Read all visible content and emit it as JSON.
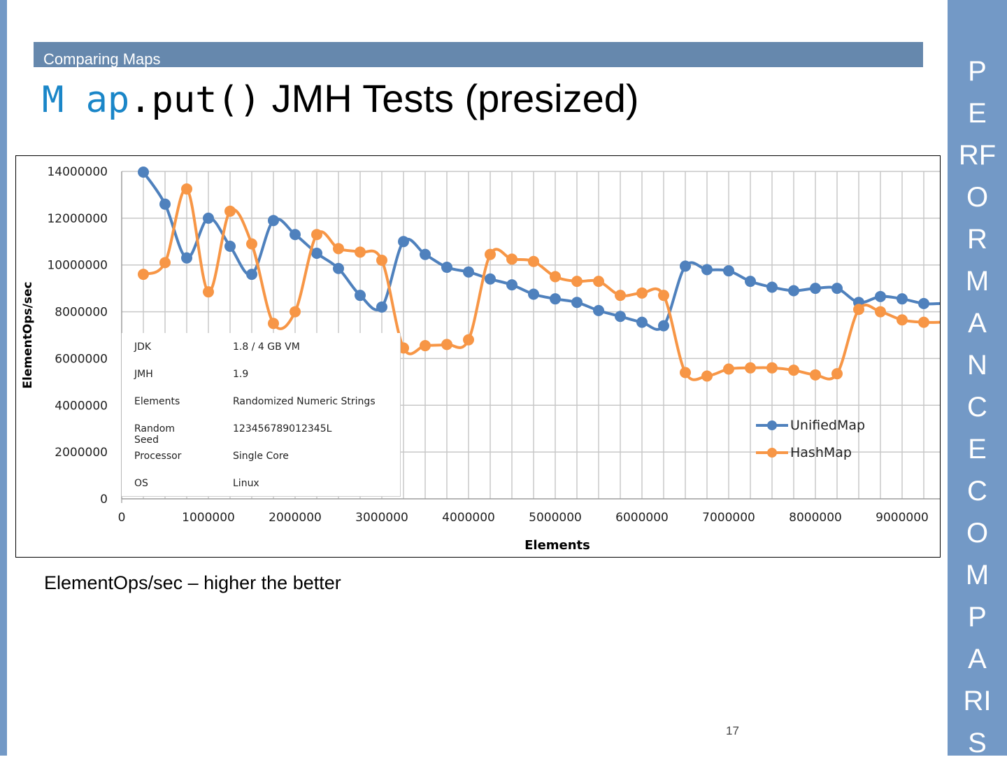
{
  "header": {
    "section": "Comparing Maps",
    "title_code_blue": "M ap",
    "title_code_black": ".put()",
    "title_text": " JMH Tests (presized)"
  },
  "sidebar": {
    "letters": [
      "P",
      "E",
      "RF",
      "O",
      "R",
      "M",
      "A",
      "N",
      "C",
      "E",
      "C",
      "O",
      "M",
      "P",
      "A",
      "RI",
      "S"
    ]
  },
  "caption": "ElementOps/sec – higher the better",
  "page_number": "17",
  "info_table": [
    [
      "JDK",
      "1.8 / 4 GB VM"
    ],
    [
      "JMH",
      "1.9"
    ],
    [
      "Elements",
      "Randomized Numeric Strings"
    ],
    [
      "Random Seed",
      "123456789012345L"
    ],
    [
      "Processor",
      "Single Core"
    ],
    [
      "OS",
      "Linux"
    ]
  ],
  "chart_data": {
    "type": "line",
    "xlabel": "Elements",
    "ylabel": "ElementOps/sec",
    "xlim": [
      0,
      9400000
    ],
    "ylim": [
      0,
      14000000
    ],
    "xticks": [
      "0",
      "1000000",
      "2000000",
      "3000000",
      "4000000",
      "5000000",
      "6000000",
      "7000000",
      "8000000",
      "9000000"
    ],
    "yticks": [
      "0",
      "2000000",
      "4000000",
      "6000000",
      "8000000",
      "10000000",
      "12000000",
      "14000000"
    ],
    "legend": "right",
    "x": [
      250000,
      500000,
      750000,
      1000000,
      1250000,
      1500000,
      1750000,
      2000000,
      2250000,
      2500000,
      2750000,
      3000000,
      3250000,
      3500000,
      3750000,
      4000000,
      4250000,
      4500000,
      4750000,
      5000000,
      5250000,
      5500000,
      5750000,
      6000000,
      6250000,
      6500000,
      6750000,
      7000000,
      7250000,
      7500000,
      7750000,
      8000000,
      8250000,
      8500000,
      8750000,
      9000000,
      9250000
    ],
    "series": [
      {
        "name": "UnifiedMap",
        "color": "#4f81bd",
        "values": [
          13970000,
          12600000,
          10300000,
          12000000,
          10800000,
          9600000,
          11900000,
          11300000,
          10500000,
          9850000,
          8700000,
          8200000,
          11000000,
          10450000,
          9900000,
          9700000,
          9400000,
          9150000,
          8750000,
          8550000,
          8400000,
          8050000,
          7800000,
          7550000,
          7400000,
          9950000,
          9800000,
          9750000,
          9300000,
          9050000,
          8900000,
          9000000,
          9000000,
          8400000,
          8650000,
          8550000,
          8350000
        ]
      },
      {
        "name": "HashMap",
        "color": "#f79646",
        "values": [
          9600000,
          10100000,
          13250000,
          8850000,
          12300000,
          10900000,
          7500000,
          8000000,
          11300000,
          10700000,
          10550000,
          10200000,
          6450000,
          6550000,
          6600000,
          6800000,
          10450000,
          10250000,
          10150000,
          9500000,
          9300000,
          9300000,
          8700000,
          8800000,
          8700000,
          5400000,
          5250000,
          5550000,
          5600000,
          5600000,
          5500000,
          5300000,
          5350000,
          8100000,
          8000000,
          7650000,
          7550000
        ]
      }
    ]
  }
}
